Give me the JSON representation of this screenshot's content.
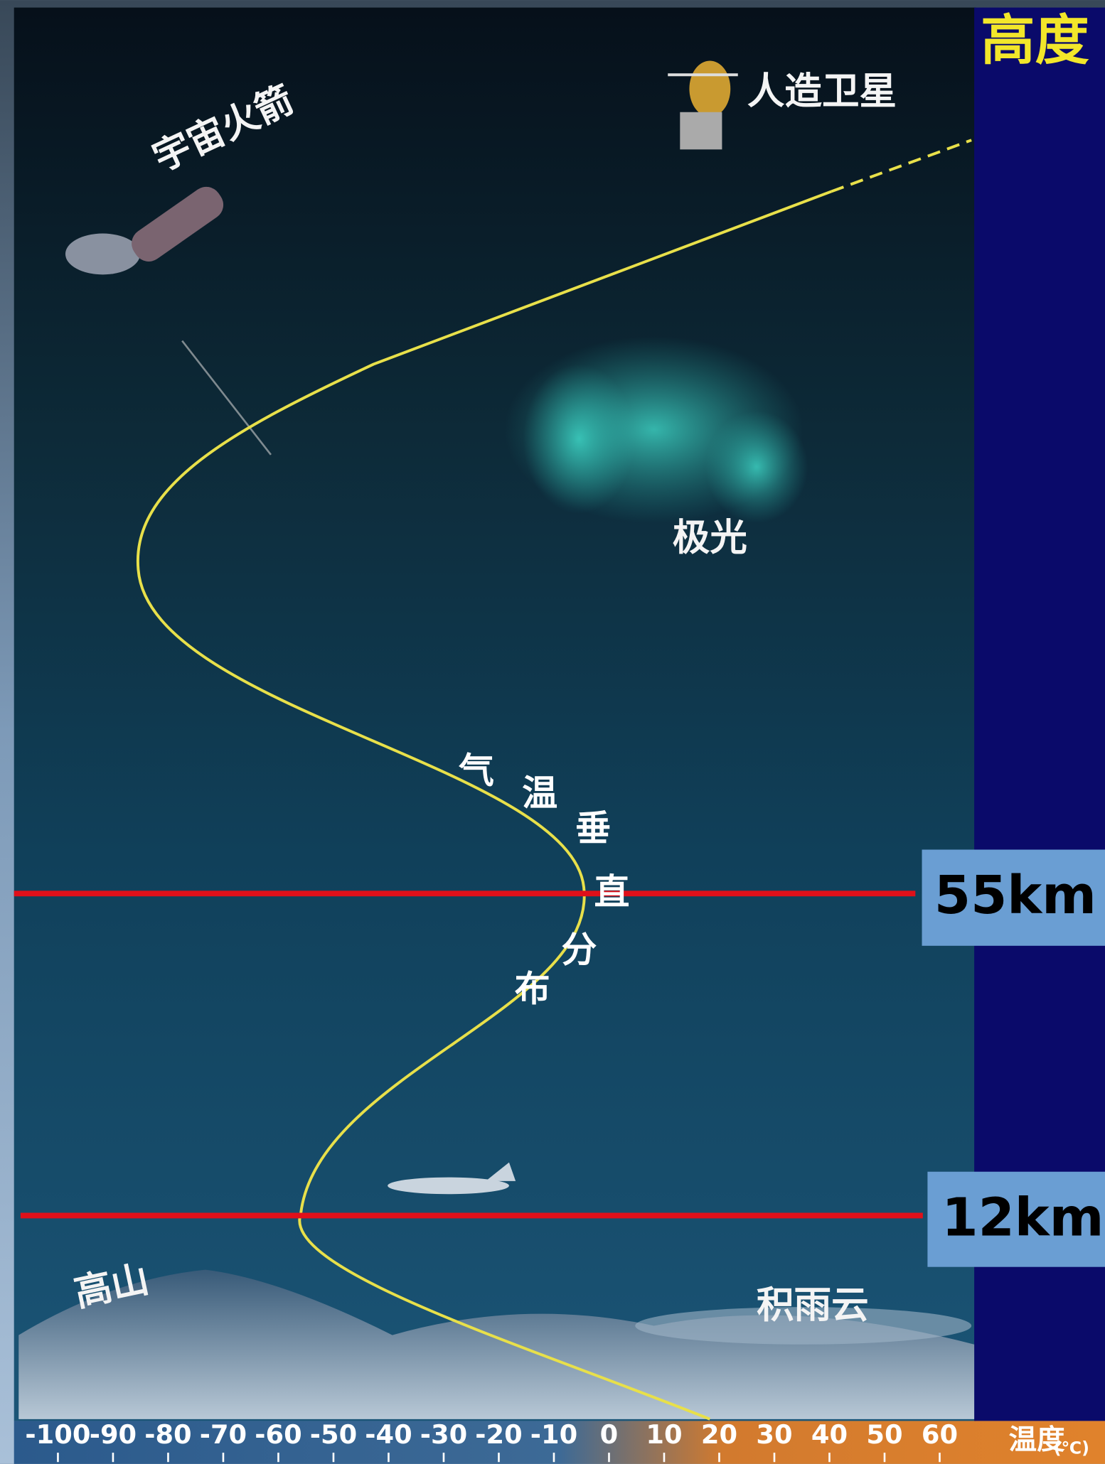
{
  "labels": {
    "rocket": "宇宙火箭",
    "satellite": "人造卫星",
    "aurora": "极光",
    "mountain": "高山",
    "cloud": "积雨云"
  },
  "curve_label": [
    "气",
    "温",
    "垂",
    "直",
    "分",
    "布"
  ],
  "altitude_title": "高度",
  "altitude_marks": [
    "55km",
    "12km"
  ],
  "temperature_axis": {
    "title": "温度",
    "unit": "(℃)",
    "ticks": [
      -100,
      -90,
      -80,
      -70,
      -60,
      -50,
      -40,
      -30,
      -20,
      -10,
      0,
      10,
      20,
      30,
      40,
      50,
      60
    ]
  }
}
